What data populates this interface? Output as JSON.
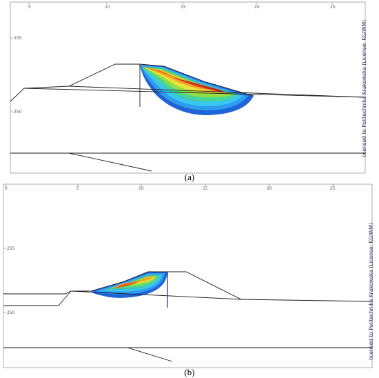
{
  "panels": [
    {
      "id": "a",
      "caption": "(a)",
      "x_ticks": [
        "5",
        "10",
        "15",
        "20",
        "25"
      ],
      "y_ticks": [
        "255",
        "250"
      ],
      "license": "licensed to Politechnika Krakowska (License: KGIWM)"
    },
    {
      "id": "b",
      "caption": "(b)",
      "x_ticks": [
        "0",
        "5",
        "10",
        "15",
        "20",
        "25"
      ],
      "y_ticks": [
        "255",
        "250"
      ],
      "license": "licensed to Politechnika Krakowska (License: KGIWM)"
    }
  ],
  "colors": {
    "frame": "#9a9a9a",
    "outline": "#1a1a1a",
    "pole_b": "#1f2a7a",
    "contour_scale": [
      "#1e64d8",
      "#2e9cf0",
      "#39c7ee",
      "#48d59a",
      "#8ede46",
      "#e8e43a",
      "#f7a52c",
      "#f26a22",
      "#e23220",
      "#d21a1a"
    ]
  }
}
